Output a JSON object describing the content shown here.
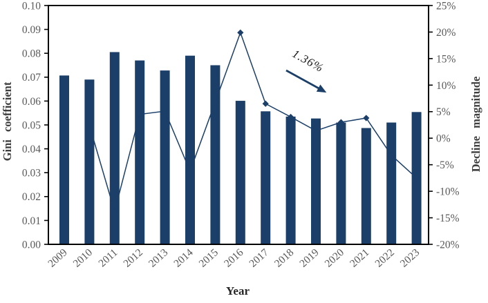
{
  "colors": {
    "accent": "#1B3F69",
    "tick_label": "#595959",
    "axis_title": "#3F3F3F",
    "year_title": "#262626",
    "annotation_text": "#1A1A1A",
    "frame": "#000000",
    "background": "#FFFFFF"
  },
  "chart_data": {
    "type": "combo-bar-line",
    "title": "",
    "xlabel": "Year",
    "grid": false,
    "legend": "none",
    "categories": [
      "2009",
      "2010",
      "2011",
      "2012",
      "2013",
      "2014",
      "2015",
      "2016",
      "2017",
      "2018",
      "2019",
      "2020",
      "2021",
      "2022",
      "2023"
    ],
    "series": [
      {
        "name": "Gini coefficient",
        "type": "bar",
        "axis": "left",
        "values": [
          0.0707,
          0.069,
          0.0805,
          0.077,
          0.0728,
          0.079,
          0.075,
          0.0601,
          0.0557,
          0.0535,
          0.0527,
          0.051,
          0.0487,
          0.051,
          0.0554
        ]
      },
      {
        "name": "Decline magnitude",
        "type": "line",
        "axis": "right",
        "marker": "diamond",
        "values_percent": [
          null,
          2.4,
          -13.8,
          4.5,
          5.1,
          -6.2,
          6.8,
          19.9,
          6.5,
          4.0,
          1.4,
          3.0,
          3.8,
          -3.2,
          -7.5
        ]
      }
    ],
    "left_axis": {
      "label": "Gini coefficient",
      "min": 0,
      "max": 0.1,
      "tick_labels": [
        "0.00",
        "0.01",
        "0.02",
        "0.03",
        "0.04",
        "0.05",
        "0.06",
        "0.07",
        "0.08",
        "0.09",
        "0.10"
      ]
    },
    "right_axis": {
      "label": "Decline magnitude",
      "min": -20,
      "max": 25,
      "tick_labels": [
        "-20%",
        "-15%",
        "-10%",
        "-5%",
        "0%",
        "5%",
        "10%",
        "15%",
        "20%",
        "25%"
      ]
    },
    "annotation": {
      "text": "1.36%"
    }
  }
}
